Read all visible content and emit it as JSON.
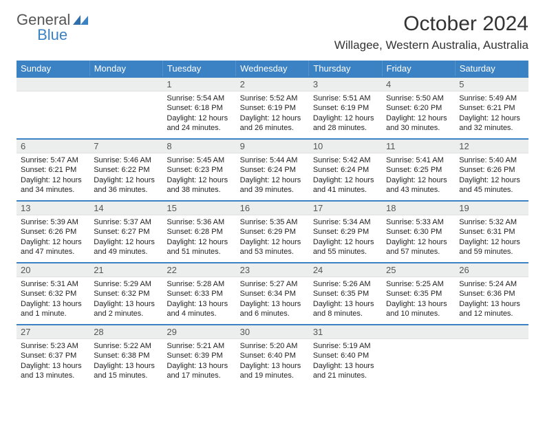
{
  "logo": {
    "word1": "General",
    "word2": "Blue"
  },
  "header": {
    "month_title": "October 2024",
    "location": "Willagee, Western Australia, Australia"
  },
  "colors": {
    "header_bg": "#3b82c4",
    "header_text": "#ffffff",
    "daynum_bg": "#eceded",
    "week_sep": "#3b82c4"
  },
  "daynames": [
    "Sunday",
    "Monday",
    "Tuesday",
    "Wednesday",
    "Thursday",
    "Friday",
    "Saturday"
  ],
  "weeks": [
    [
      null,
      null,
      {
        "n": "1",
        "sr": "5:54 AM",
        "ss": "6:18 PM",
        "dl": "12 hours and 24 minutes."
      },
      {
        "n": "2",
        "sr": "5:52 AM",
        "ss": "6:19 PM",
        "dl": "12 hours and 26 minutes."
      },
      {
        "n": "3",
        "sr": "5:51 AM",
        "ss": "6:19 PM",
        "dl": "12 hours and 28 minutes."
      },
      {
        "n": "4",
        "sr": "5:50 AM",
        "ss": "6:20 PM",
        "dl": "12 hours and 30 minutes."
      },
      {
        "n": "5",
        "sr": "5:49 AM",
        "ss": "6:21 PM",
        "dl": "12 hours and 32 minutes."
      }
    ],
    [
      {
        "n": "6",
        "sr": "5:47 AM",
        "ss": "6:21 PM",
        "dl": "12 hours and 34 minutes."
      },
      {
        "n": "7",
        "sr": "5:46 AM",
        "ss": "6:22 PM",
        "dl": "12 hours and 36 minutes."
      },
      {
        "n": "8",
        "sr": "5:45 AM",
        "ss": "6:23 PM",
        "dl": "12 hours and 38 minutes."
      },
      {
        "n": "9",
        "sr": "5:44 AM",
        "ss": "6:24 PM",
        "dl": "12 hours and 39 minutes."
      },
      {
        "n": "10",
        "sr": "5:42 AM",
        "ss": "6:24 PM",
        "dl": "12 hours and 41 minutes."
      },
      {
        "n": "11",
        "sr": "5:41 AM",
        "ss": "6:25 PM",
        "dl": "12 hours and 43 minutes."
      },
      {
        "n": "12",
        "sr": "5:40 AM",
        "ss": "6:26 PM",
        "dl": "12 hours and 45 minutes."
      }
    ],
    [
      {
        "n": "13",
        "sr": "5:39 AM",
        "ss": "6:26 PM",
        "dl": "12 hours and 47 minutes."
      },
      {
        "n": "14",
        "sr": "5:37 AM",
        "ss": "6:27 PM",
        "dl": "12 hours and 49 minutes."
      },
      {
        "n": "15",
        "sr": "5:36 AM",
        "ss": "6:28 PM",
        "dl": "12 hours and 51 minutes."
      },
      {
        "n": "16",
        "sr": "5:35 AM",
        "ss": "6:29 PM",
        "dl": "12 hours and 53 minutes."
      },
      {
        "n": "17",
        "sr": "5:34 AM",
        "ss": "6:29 PM",
        "dl": "12 hours and 55 minutes."
      },
      {
        "n": "18",
        "sr": "5:33 AM",
        "ss": "6:30 PM",
        "dl": "12 hours and 57 minutes."
      },
      {
        "n": "19",
        "sr": "5:32 AM",
        "ss": "6:31 PM",
        "dl": "12 hours and 59 minutes."
      }
    ],
    [
      {
        "n": "20",
        "sr": "5:31 AM",
        "ss": "6:32 PM",
        "dl": "13 hours and 1 minute."
      },
      {
        "n": "21",
        "sr": "5:29 AM",
        "ss": "6:32 PM",
        "dl": "13 hours and 2 minutes."
      },
      {
        "n": "22",
        "sr": "5:28 AM",
        "ss": "6:33 PM",
        "dl": "13 hours and 4 minutes."
      },
      {
        "n": "23",
        "sr": "5:27 AM",
        "ss": "6:34 PM",
        "dl": "13 hours and 6 minutes."
      },
      {
        "n": "24",
        "sr": "5:26 AM",
        "ss": "6:35 PM",
        "dl": "13 hours and 8 minutes."
      },
      {
        "n": "25",
        "sr": "5:25 AM",
        "ss": "6:35 PM",
        "dl": "13 hours and 10 minutes."
      },
      {
        "n": "26",
        "sr": "5:24 AM",
        "ss": "6:36 PM",
        "dl": "13 hours and 12 minutes."
      }
    ],
    [
      {
        "n": "27",
        "sr": "5:23 AM",
        "ss": "6:37 PM",
        "dl": "13 hours and 13 minutes."
      },
      {
        "n": "28",
        "sr": "5:22 AM",
        "ss": "6:38 PM",
        "dl": "13 hours and 15 minutes."
      },
      {
        "n": "29",
        "sr": "5:21 AM",
        "ss": "6:39 PM",
        "dl": "13 hours and 17 minutes."
      },
      {
        "n": "30",
        "sr": "5:20 AM",
        "ss": "6:40 PM",
        "dl": "13 hours and 19 minutes."
      },
      {
        "n": "31",
        "sr": "5:19 AM",
        "ss": "6:40 PM",
        "dl": "13 hours and 21 minutes."
      },
      null,
      null
    ]
  ],
  "labels": {
    "sunrise": "Sunrise:",
    "sunset": "Sunset:",
    "daylight": "Daylight:"
  }
}
